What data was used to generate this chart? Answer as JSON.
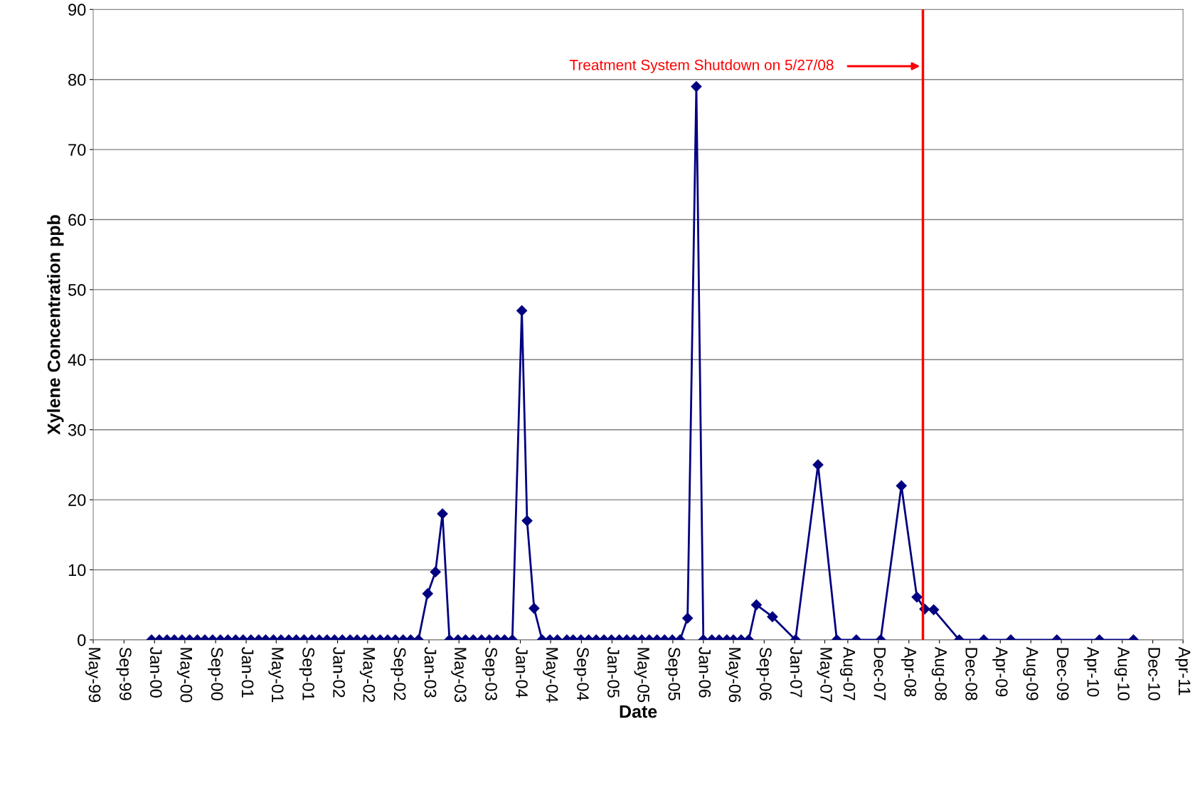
{
  "chart_data": {
    "type": "line",
    "xlabel": "Date",
    "ylabel": "Xylene Concentration ppb",
    "xlim": [
      "1999-05-01",
      "2011-04-01"
    ],
    "ylim": [
      0,
      90
    ],
    "yticks": [
      0,
      10,
      20,
      30,
      40,
      50,
      60,
      70,
      80,
      90
    ],
    "xticks": [
      {
        "value": "1999-05-01",
        "label": "May-99"
      },
      {
        "value": "1999-09-01",
        "label": "Sep-99"
      },
      {
        "value": "2000-01-01",
        "label": "Jan-00"
      },
      {
        "value": "2000-05-01",
        "label": "May-00"
      },
      {
        "value": "2000-09-01",
        "label": "Sep-00"
      },
      {
        "value": "2001-01-01",
        "label": "Jan-01"
      },
      {
        "value": "2001-05-01",
        "label": "May-01"
      },
      {
        "value": "2001-09-01",
        "label": "Sep-01"
      },
      {
        "value": "2002-01-01",
        "label": "Jan-02"
      },
      {
        "value": "2002-05-01",
        "label": "May-02"
      },
      {
        "value": "2002-09-01",
        "label": "Sep-02"
      },
      {
        "value": "2003-01-01",
        "label": "Jan-03"
      },
      {
        "value": "2003-05-01",
        "label": "May-03"
      },
      {
        "value": "2003-09-01",
        "label": "Sep-03"
      },
      {
        "value": "2004-01-01",
        "label": "Jan-04"
      },
      {
        "value": "2004-05-01",
        "label": "May-04"
      },
      {
        "value": "2004-09-01",
        "label": "Sep-04"
      },
      {
        "value": "2005-01-01",
        "label": "Jan-05"
      },
      {
        "value": "2005-05-01",
        "label": "May-05"
      },
      {
        "value": "2005-09-01",
        "label": "Sep-05"
      },
      {
        "value": "2006-01-01",
        "label": "Jan-06"
      },
      {
        "value": "2006-05-01",
        "label": "May-06"
      },
      {
        "value": "2006-09-01",
        "label": "Sep-06"
      },
      {
        "value": "2007-01-01",
        "label": "Jan-07"
      },
      {
        "value": "2007-05-01",
        "label": "May-07"
      },
      {
        "value": "2007-08-01",
        "label": "Aug-07"
      },
      {
        "value": "2007-12-01",
        "label": "Dec-07"
      },
      {
        "value": "2008-04-01",
        "label": "Apr-08"
      },
      {
        "value": "2008-08-01",
        "label": "Aug-08"
      },
      {
        "value": "2008-12-01",
        "label": "Dec-08"
      },
      {
        "value": "2009-04-01",
        "label": "Apr-09"
      },
      {
        "value": "2009-08-01",
        "label": "Aug-09"
      },
      {
        "value": "2009-12-01",
        "label": "Dec-09"
      },
      {
        "value": "2010-04-01",
        "label": "Apr-10"
      },
      {
        "value": "2010-08-01",
        "label": "Aug-10"
      },
      {
        "value": "2010-12-01",
        "label": "Dec-10"
      },
      {
        "value": "2011-04-01",
        "label": "Apr-11"
      }
    ],
    "grid": "y",
    "marker": "diamond",
    "line_style": "solid",
    "ref_lines": [
      {
        "axis": "x",
        "value": "2008-05-27",
        "label": "Treatment System Shutdown on 5/27/08",
        "color": "#ff0000",
        "line_style": "solid"
      }
    ],
    "series": [
      {
        "color": "#000080",
        "x": [
          "1999-12-20",
          "2000-01-20",
          "2000-02-20",
          "2000-03-20",
          "2000-04-20",
          "2000-05-20",
          "2000-06-20",
          "2000-07-20",
          "2000-08-20",
          "2000-09-20",
          "2000-10-20",
          "2000-11-20",
          "2000-12-20",
          "2001-01-20",
          "2001-02-20",
          "2001-03-20",
          "2001-04-20",
          "2001-05-20",
          "2001-06-20",
          "2001-07-20",
          "2001-08-20",
          "2001-09-20",
          "2001-10-20",
          "2001-11-20",
          "2001-12-20",
          "2002-01-20",
          "2002-02-20",
          "2002-03-20",
          "2002-04-20",
          "2002-05-20",
          "2002-06-20",
          "2002-07-20",
          "2002-08-20",
          "2002-09-20",
          "2002-10-20",
          "2002-11-20",
          "2002-12-27",
          "2003-01-27",
          "2003-02-24",
          "2003-03-24",
          "2003-04-27",
          "2003-05-27",
          "2003-06-27",
          "2003-07-30",
          "2003-08-30",
          "2003-09-30",
          "2003-10-30",
          "2003-11-30",
          "2004-01-07",
          "2004-01-28",
          "2004-02-25",
          "2004-03-28",
          "2004-04-28",
          "2004-05-28",
          "2004-07-05",
          "2004-07-30",
          "2004-08-30",
          "2004-09-30",
          "2004-10-30",
          "2004-11-30",
          "2004-12-30",
          "2005-01-30",
          "2005-03-01",
          "2005-03-30",
          "2005-04-30",
          "2005-05-30",
          "2005-06-30",
          "2005-07-30",
          "2005-08-30",
          "2005-09-30",
          "2005-10-30",
          "2005-12-04",
          "2006-01-01",
          "2006-02-04",
          "2006-03-05",
          "2006-04-05",
          "2006-05-01",
          "2006-06-01",
          "2006-07-01",
          "2006-08-01",
          "2006-10-04",
          "2007-01-04",
          "2007-04-04",
          "2007-06-18",
          "2007-09-04",
          "2007-12-10",
          "2008-03-02",
          "2008-05-03",
          "2008-06-03",
          "2008-07-09",
          "2008-10-19",
          "2009-01-25",
          "2009-05-13",
          "2009-11-13",
          "2010-05-02",
          "2010-09-15"
        ],
        "values": [
          0,
          0,
          0,
          0,
          0,
          0,
          0,
          0,
          0,
          0,
          0,
          0,
          0,
          0,
          0,
          0,
          0,
          0,
          0,
          0,
          0,
          0,
          0,
          0,
          0,
          0,
          0,
          0,
          0,
          0,
          0,
          0,
          0,
          0,
          0,
          0,
          6.6,
          9.7,
          18,
          0,
          0,
          0,
          0,
          0,
          0,
          0,
          0,
          0,
          47,
          17,
          4.5,
          0,
          0,
          0,
          0,
          0,
          0,
          0,
          0,
          0,
          0,
          0,
          0,
          0,
          0,
          0,
          0,
          0,
          0,
          0,
          3.1,
          79,
          0,
          0,
          0,
          0,
          0,
          0,
          0,
          5,
          3.3,
          0,
          25,
          0,
          0,
          0,
          22,
          6.1,
          4.4,
          4.3,
          0,
          0,
          0,
          0,
          0,
          0
        ]
      }
    ]
  }
}
